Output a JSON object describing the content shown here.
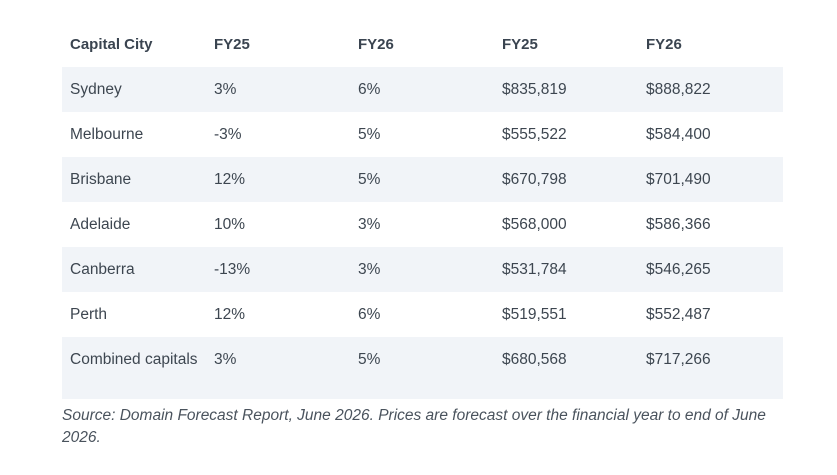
{
  "table": {
    "headers": [
      "Capital City",
      "FY25",
      "FY26",
      "FY25",
      "FY26"
    ],
    "rows": [
      [
        "Sydney",
        "3%",
        "6%",
        "$835,819",
        "$888,822"
      ],
      [
        "Melbourne",
        "-3%",
        "5%",
        "$555,522",
        "$584,400"
      ],
      [
        "Brisbane",
        "12%",
        "5%",
        "$670,798",
        "$701,490"
      ],
      [
        "Adelaide",
        "10%",
        "3%",
        "$568,000",
        "$586,366"
      ],
      [
        "Canberra",
        "-13%",
        "3%",
        "$531,784",
        "$546,265"
      ],
      [
        "Perth",
        "12%",
        "6%",
        "$519,551",
        "$552,487"
      ],
      [
        "Combined capitals",
        "3%",
        "5%",
        "$680,568",
        "$717,266"
      ]
    ]
  },
  "caption": "Source: Domain Forecast Report, June 2026. Prices are forecast over the financial year to end of June 2026."
}
